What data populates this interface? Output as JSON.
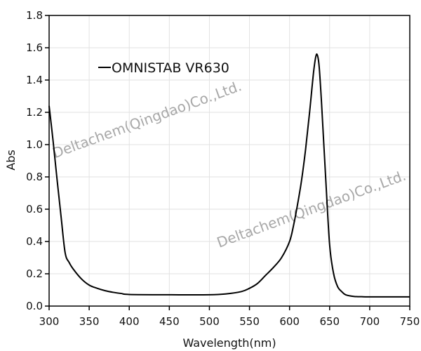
{
  "chart_data": {
    "type": "line",
    "title": "",
    "xlabel": "Wavelength(nm)",
    "ylabel": "Abs",
    "xlim": [
      300,
      750
    ],
    "ylim": [
      0,
      1.8
    ],
    "xticks": [
      300,
      350,
      400,
      450,
      500,
      550,
      600,
      650,
      700,
      750
    ],
    "yticks": [
      "0.0",
      "0.2",
      "0.4",
      "0.6",
      "0.8",
      "1.0",
      "1.2",
      "1.4",
      "1.6",
      "1.8"
    ],
    "grid": true,
    "legend_placement": "top-left",
    "series": [
      {
        "name": "OMNISTAB VR630",
        "color": "#000000",
        "x": [
          300,
          305,
          310,
          315,
          320,
          325,
          330,
          340,
          350,
          360,
          370,
          380,
          390,
          400,
          450,
          500,
          520,
          540,
          550,
          560,
          570,
          580,
          590,
          600,
          605,
          610,
          615,
          620,
          625,
          630,
          633,
          635,
          637,
          640,
          645,
          650,
          655,
          660,
          665,
          670,
          680,
          690,
          700,
          750
        ],
        "y": [
          1.24,
          1.02,
          0.78,
          0.55,
          0.33,
          0.27,
          0.23,
          0.17,
          0.13,
          0.11,
          0.095,
          0.085,
          0.078,
          0.072,
          0.07,
          0.07,
          0.075,
          0.09,
          0.11,
          0.14,
          0.19,
          0.24,
          0.3,
          0.4,
          0.5,
          0.63,
          0.78,
          0.97,
          1.2,
          1.45,
          1.55,
          1.55,
          1.48,
          1.25,
          0.8,
          0.38,
          0.2,
          0.12,
          0.09,
          0.07,
          0.06,
          0.058,
          0.057,
          0.057
        ]
      }
    ]
  },
  "watermark": "Deltachem(Qingdao)Co.,Ltd."
}
